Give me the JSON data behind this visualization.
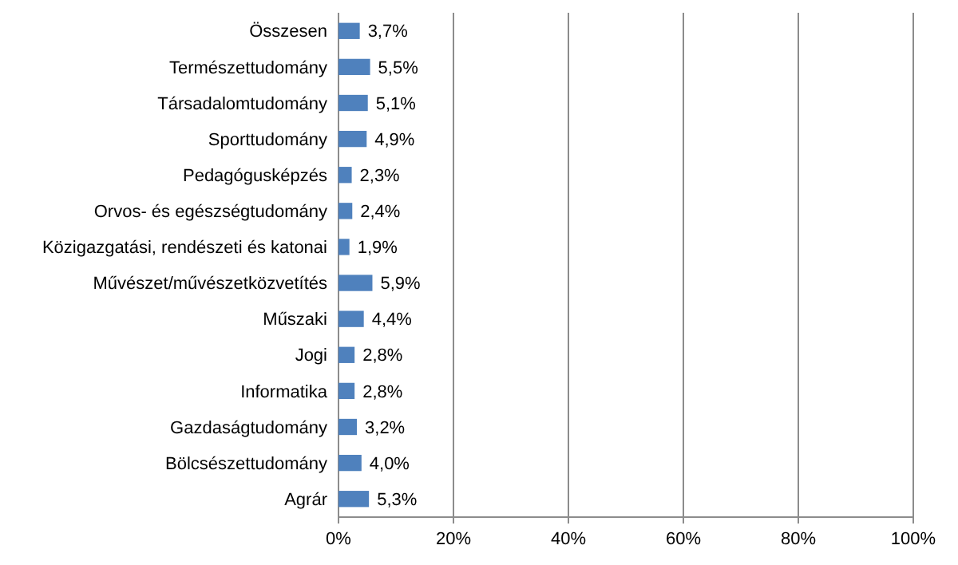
{
  "chart_data": {
    "type": "bar",
    "orientation": "horizontal",
    "categories": [
      "Összesen",
      "Természettudomány",
      "Társadalomtudomány",
      "Sporttudomány",
      "Pedagógusképzés",
      "Orvos- és egészségtudomány",
      "Közigazgatási, rendészeti és katonai",
      "Művészet/művészetközvetítés",
      "Műszaki",
      "Jogi",
      "Informatika",
      "Gazdaságtudomány",
      "Bölcsészettudomány",
      "Agrár"
    ],
    "values": [
      3.7,
      5.5,
      5.1,
      4.9,
      2.3,
      2.4,
      1.9,
      5.9,
      4.4,
      2.8,
      2.8,
      3.2,
      4.0,
      5.3
    ],
    "value_labels": [
      "3,7%",
      "5,5%",
      "5,1%",
      "4,9%",
      "2,3%",
      "2,4%",
      "1,9%",
      "5,9%",
      "4,4%",
      "2,8%",
      "2,8%",
      "3,2%",
      "4,0%",
      "5,3%"
    ],
    "color": "#4f81bd",
    "xlim": [
      0,
      100
    ],
    "xticks": [
      {
        "value": 0,
        "label": "0%"
      },
      {
        "value": 20,
        "label": "20%"
      },
      {
        "value": 40,
        "label": "40%"
      },
      {
        "value": 60,
        "label": "60%"
      },
      {
        "value": 80,
        "label": "80%"
      },
      {
        "value": 100,
        "label": "100%"
      }
    ],
    "grid": "x"
  }
}
